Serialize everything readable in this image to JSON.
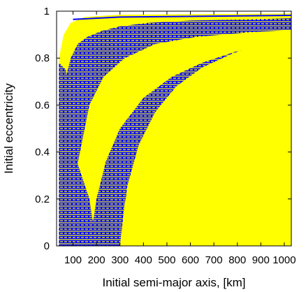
{
  "chart_data": {
    "type": "heatmap",
    "title": "",
    "xlabel": "Initial semi-major axis, [km]",
    "ylabel": "Initial eccentricity",
    "xlim": [
      30,
      1030
    ],
    "ylim": [
      0,
      1
    ],
    "x_ticks": [
      100,
      200,
      300,
      400,
      500,
      600,
      700,
      800,
      900,
      1000
    ],
    "x_tick_labels": [
      "100",
      "200",
      "300",
      "400",
      "500",
      "600",
      "700",
      "800",
      "900",
      "1000"
    ],
    "y_ticks": [
      0,
      0.2,
      0.4,
      0.6,
      0.8,
      1
    ],
    "y_tick_labels": [
      "0",
      "0.2",
      "0.4",
      "0.6",
      "0.8",
      "1"
    ],
    "grid": false,
    "colors": {
      "stable": "#ffff00",
      "unstable": "#0000ff",
      "background": "#ffffff",
      "axis": "#000000"
    },
    "regions": {
      "band1_inner": {
        "a": [
          40,
          70,
          90,
          120,
          160,
          220,
          300,
          420,
          600,
          850,
          1030
        ],
        "e": [
          0.0,
          0.72,
          0.8,
          0.86,
          0.89,
          0.915,
          0.935,
          0.95,
          0.96,
          0.965,
          0.97
        ]
      },
      "band1_outer": {
        "a": [
          120,
          170,
          230,
          320,
          450,
          620,
          850,
          1030
        ],
        "e": [
          0.35,
          0.6,
          0.72,
          0.8,
          0.86,
          0.89,
          0.91,
          0.92
        ]
      },
      "band2_inner": {
        "a": [
          170,
          200,
          240,
          300,
          400,
          520,
          650,
          800,
          1030
        ],
        "e": [
          0.0,
          0.2,
          0.36,
          0.5,
          0.63,
          0.72,
          0.78,
          0.83,
          0.87
        ]
      },
      "band2_outer": {
        "a": [
          300,
          320,
          360,
          420,
          500,
          600,
          720,
          860,
          1030
        ],
        "e": [
          0.0,
          0.18,
          0.34,
          0.48,
          0.6,
          0.7,
          0.77,
          0.83,
          0.87
        ]
      },
      "stable_core_edge": {
        "a": [
          305,
          330,
          380,
          450,
          540,
          650,
          780,
          920,
          1030
        ],
        "e": [
          0.0,
          0.25,
          0.43,
          0.57,
          0.68,
          0.76,
          0.82,
          0.87,
          0.89
        ]
      }
    }
  }
}
